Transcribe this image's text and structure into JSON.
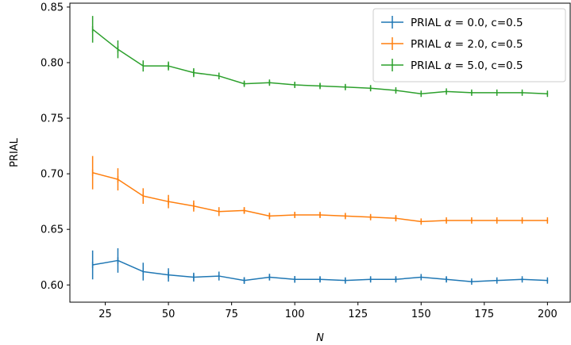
{
  "chart_data": {
    "type": "line",
    "title": "",
    "xlabel": "N",
    "ylabel": "PRIAL",
    "xlim": [
      11,
      209
    ],
    "ylim": [
      0.5845,
      0.8535
    ],
    "xticks": [
      25,
      50,
      75,
      100,
      125,
      150,
      175,
      200
    ],
    "xtick_labels": [
      "25",
      "50",
      "75",
      "100",
      "125",
      "150",
      "175",
      "200"
    ],
    "yticks": [
      0.6,
      0.65,
      0.7,
      0.75,
      0.8,
      0.85
    ],
    "ytick_labels": [
      "0.60",
      "0.65",
      "0.70",
      "0.75",
      "0.80",
      "0.85"
    ],
    "grid": false,
    "legend_position": "top-right",
    "x": [
      20,
      30,
      40,
      50,
      60,
      70,
      80,
      90,
      100,
      110,
      120,
      130,
      140,
      150,
      160,
      170,
      180,
      190,
      200
    ],
    "series": [
      {
        "name": "PRIAL α = 0.0, c=0.5",
        "label_prefix": "PRIAL ",
        "label_alpha": "α",
        "label_suffix": " = 0.0, c=0.5",
        "color": "#1f77b4",
        "values": [
          0.618,
          0.622,
          0.612,
          0.609,
          0.607,
          0.608,
          0.604,
          0.607,
          0.605,
          0.605,
          0.604,
          0.605,
          0.605,
          0.607,
          0.605,
          0.603,
          0.604,
          0.605,
          0.604
        ],
        "errors": [
          0.013,
          0.011,
          0.008,
          0.006,
          0.004,
          0.004,
          0.003,
          0.003,
          0.003,
          0.002,
          0.002,
          0.002,
          0.002,
          0.002,
          0.002,
          0.001,
          0.001,
          0.001,
          0.001
        ]
      },
      {
        "name": "PRIAL α = 2.0, c=0.5",
        "label_prefix": "PRIAL ",
        "label_alpha": "α",
        "label_suffix": " = 2.0, c=0.5",
        "color": "#ff7f0e",
        "values": [
          0.701,
          0.695,
          0.68,
          0.675,
          0.671,
          0.666,
          0.667,
          0.662,
          0.663,
          0.663,
          0.662,
          0.661,
          0.66,
          0.657,
          0.658,
          0.658,
          0.658,
          0.658,
          0.658
        ],
        "errors": [
          0.015,
          0.01,
          0.007,
          0.006,
          0.005,
          0.004,
          0.003,
          0.003,
          0.002,
          0.002,
          0.002,
          0.002,
          0.002,
          0.001,
          0.001,
          0.001,
          0.001,
          0.001,
          0.001
        ]
      },
      {
        "name": "PRIAL α = 5.0, c=0.5",
        "label_prefix": "PRIAL ",
        "label_alpha": "α",
        "label_suffix": " = 5.0, c=0.5",
        "color": "#2ca02c",
        "values": [
          0.83,
          0.812,
          0.797,
          0.797,
          0.791,
          0.788,
          0.781,
          0.782,
          0.78,
          0.779,
          0.778,
          0.777,
          0.775,
          0.772,
          0.774,
          0.773,
          0.773,
          0.773,
          0.772
        ],
        "errors": [
          0.012,
          0.008,
          0.005,
          0.004,
          0.004,
          0.003,
          0.002,
          0.002,
          0.002,
          0.002,
          0.002,
          0.002,
          0.001,
          0.001,
          0.001,
          0.001,
          0.001,
          0.001,
          0.001
        ]
      }
    ]
  }
}
